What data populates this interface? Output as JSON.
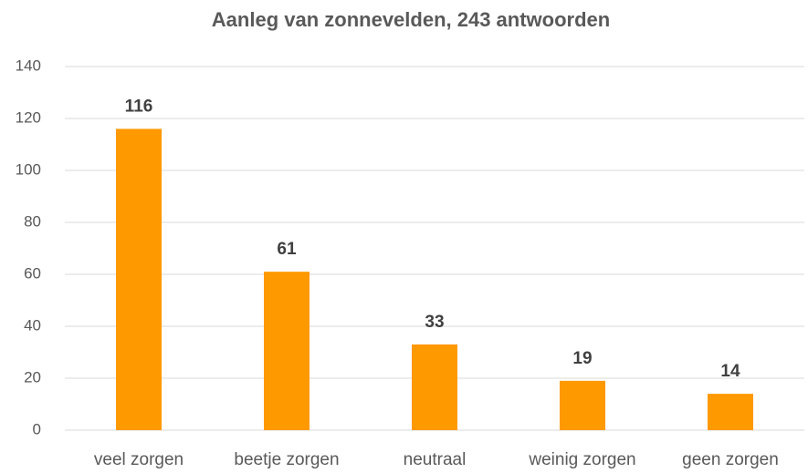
{
  "chart_data": {
    "type": "bar",
    "title": "Aanleg van zonnevelden, 243 antwoorden",
    "categories": [
      "veel zorgen",
      "beetje zorgen",
      "neutraal",
      "weinig zorgen",
      "geen zorgen"
    ],
    "values": [
      116,
      61,
      33,
      19,
      14
    ],
    "color": "#ff9900",
    "ylim": [
      0,
      140
    ],
    "yticks": [
      0,
      20,
      40,
      60,
      80,
      100,
      120,
      140
    ],
    "grid": true
  }
}
